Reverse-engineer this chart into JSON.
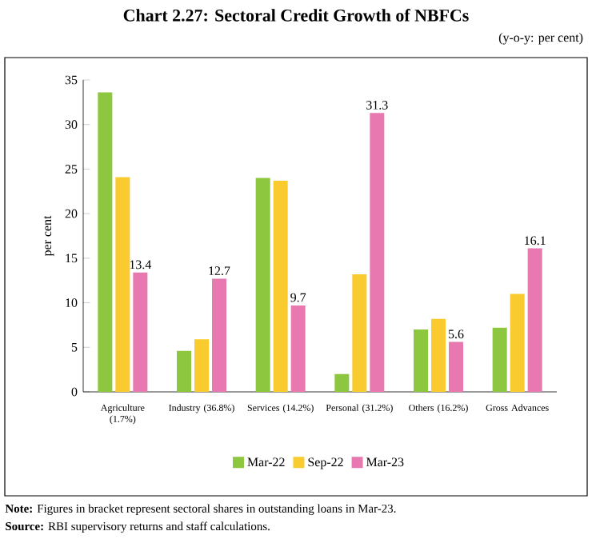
{
  "chart_data": {
    "type": "bar",
    "title": "Chart 2.27: Sectoral Credit Growth of NBFCs",
    "subtitle": "(y-o-y: per cent)",
    "ylabel": "per cent",
    "categories": [
      "Agriculture (1.7%)",
      "Industry (36.8%)",
      "Services (14.2%)",
      "Personal (31.2%)",
      "Others (16.2%)",
      "Gross Advances"
    ],
    "series": [
      {
        "name": "Mar-22",
        "color": "#8dc63f",
        "values": [
          33.6,
          4.6,
          24.0,
          2.0,
          7.0,
          7.2
        ]
      },
      {
        "name": "Sep-22",
        "color": "#f9cb2e",
        "values": [
          24.1,
          5.9,
          23.7,
          13.2,
          8.2,
          11.0
        ]
      },
      {
        "name": "Mar-23",
        "color": "#e878b0",
        "values": [
          13.4,
          12.7,
          9.7,
          31.3,
          5.6,
          16.1
        ],
        "value_labels": [
          "13.4",
          "12.7",
          "9.7",
          "31.3",
          "5.6",
          "16.1"
        ]
      }
    ],
    "ylim": [
      0,
      35
    ],
    "yticks": [
      0,
      5,
      10,
      15,
      20,
      25,
      30,
      35
    ],
    "grid": false,
    "legend": "bottom",
    "annotations": [
      "**Note:** Figures in bracket represent sectoral shares in outstanding loans in Mar-23.",
      "**Source:** RBI supervisory returns and staff calculations."
    ]
  }
}
